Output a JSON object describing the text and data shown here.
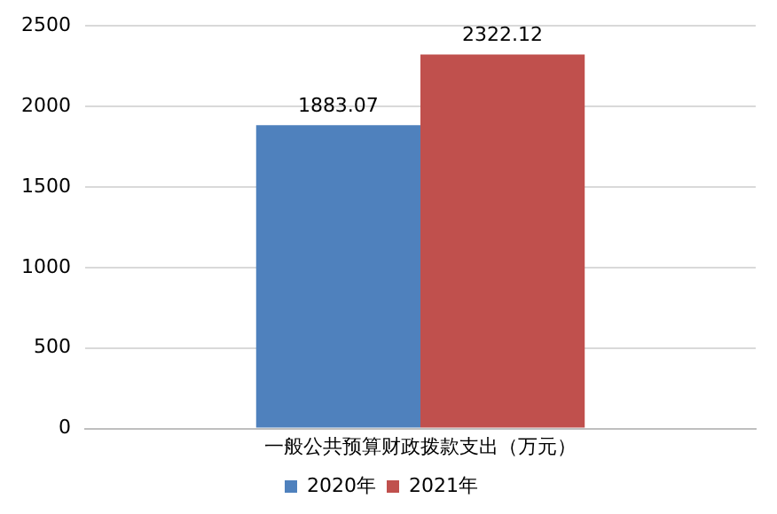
{
  "chart_data": {
    "type": "bar",
    "categories": [
      "一般公共预算财政拨款支出（万元）"
    ],
    "series": [
      {
        "name": "2020年",
        "color": "#4f81bd",
        "values": [
          1883.07
        ]
      },
      {
        "name": "2021年",
        "color": "#c0504d",
        "values": [
          2322.12
        ]
      }
    ],
    "ylim": [
      0,
      2500
    ],
    "yticks": [
      0,
      500,
      1000,
      1500,
      2000,
      2500
    ],
    "grid": "y",
    "legend": "bottom",
    "data_labels": true
  }
}
